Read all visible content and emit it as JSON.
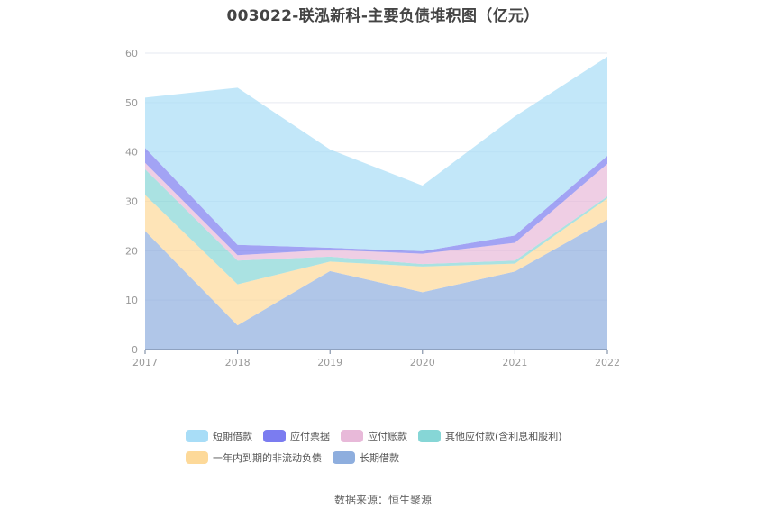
{
  "title": "003022-联泓新科-主要负债堆积图（亿元）",
  "source": "数据来源：恒生聚源",
  "colors": {
    "short_term_loans": "#a8ddf7",
    "notes_payable": "#7b7cf0",
    "accounts_payable": "#e8b9d9",
    "other_payables": "#86d6d6",
    "current_noncurrent": "#fdd999",
    "long_term_loans": "#8eaede"
  },
  "legend": [
    {
      "label": "短期借款",
      "color": "#a8ddf7"
    },
    {
      "label": "应付票据",
      "color": "#7b7cf0"
    },
    {
      "label": "应付账款",
      "color": "#e8b9d9"
    },
    {
      "label": "其他应付款(含利息和股利)",
      "color": "#86d6d6"
    },
    {
      "label": "一年内到期的非流动负债",
      "color": "#fdd999"
    },
    {
      "label": "长期借款",
      "color": "#8eaede"
    }
  ],
  "chart_data": {
    "type": "area",
    "stacked": true,
    "title": "003022-联泓新科-主要负债堆积图（亿元）",
    "xlabel": "",
    "ylabel": "",
    "categories": [
      "2017",
      "2018",
      "2019",
      "2020",
      "2021",
      "2022"
    ],
    "ylim": [
      0,
      60
    ],
    "yticks": [
      0,
      10,
      20,
      30,
      40,
      50,
      60
    ],
    "grid": true,
    "legend_position": "bottom",
    "series": [
      {
        "name": "长期借款",
        "values": [
          24.0,
          4.9,
          15.9,
          11.6,
          15.8,
          26.3
        ]
      },
      {
        "name": "一年内到期的非流动负债",
        "values": [
          7.3,
          8.3,
          1.9,
          5.2,
          1.6,
          4.3
        ]
      },
      {
        "name": "其他应付款(含利息和股利)",
        "values": [
          5.2,
          4.8,
          1.0,
          0.5,
          0.6,
          0.4
        ]
      },
      {
        "name": "应付账款",
        "values": [
          1.3,
          1.1,
          1.4,
          2.1,
          3.6,
          6.6
        ]
      },
      {
        "name": "应付票据",
        "values": [
          3.0,
          2.1,
          0.4,
          0.5,
          1.5,
          1.6
        ]
      },
      {
        "name": "短期借款",
        "values": [
          10.2,
          31.8,
          19.9,
          13.3,
          24.1,
          20.1
        ]
      }
    ]
  }
}
